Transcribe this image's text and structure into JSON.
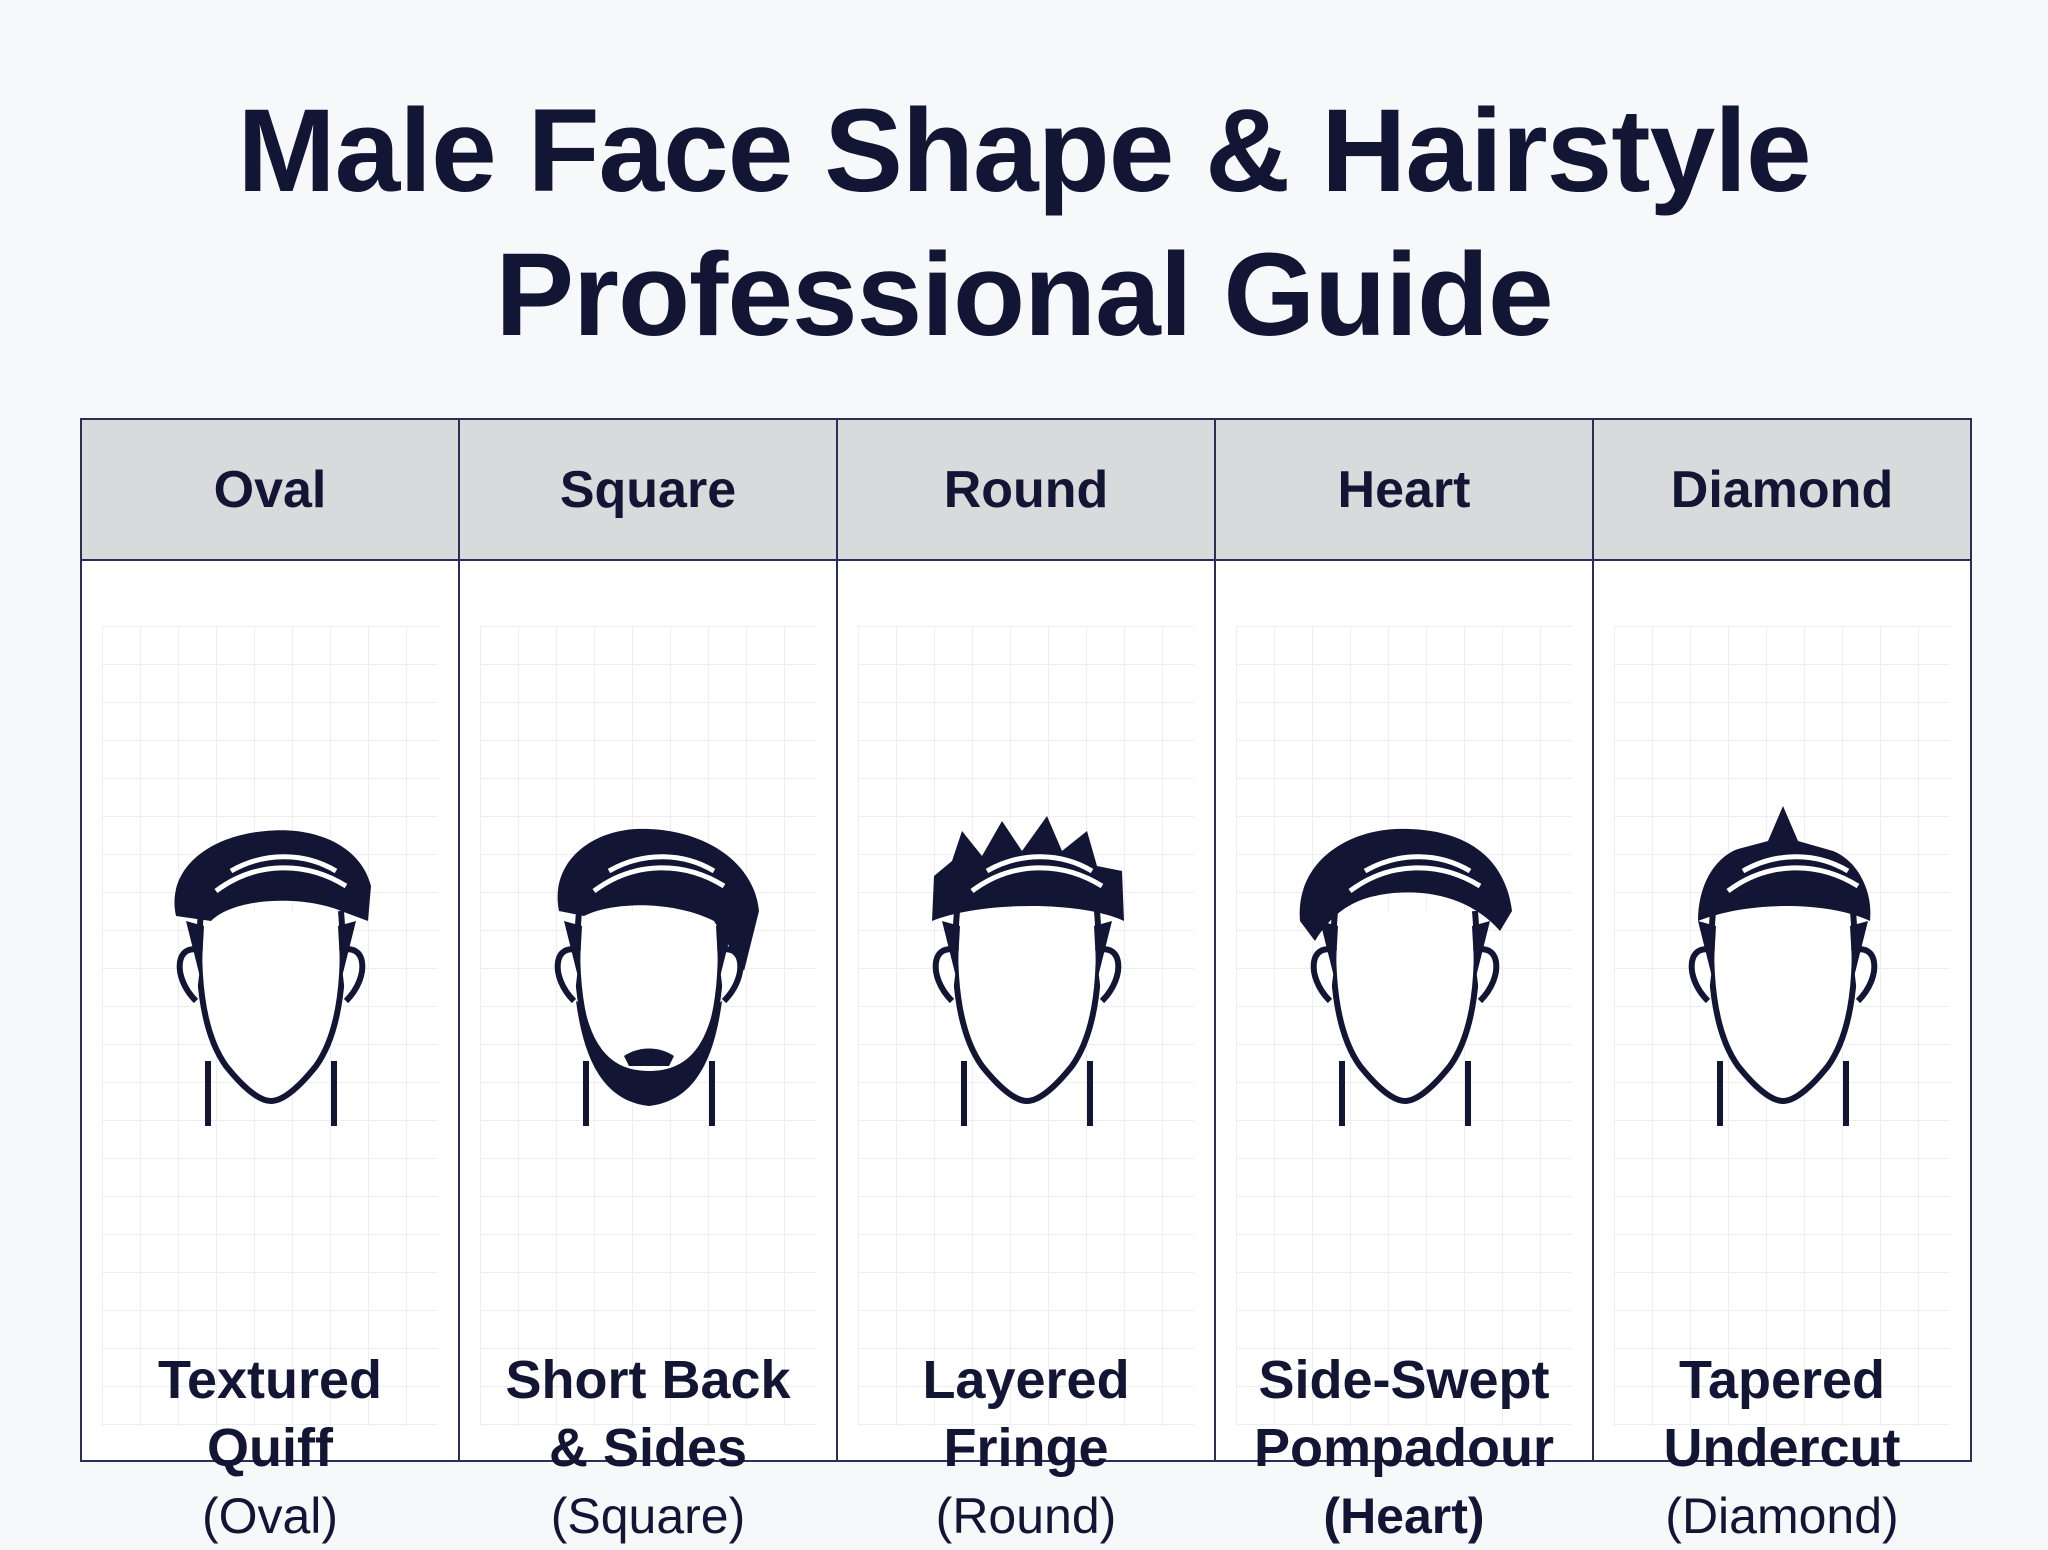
{
  "title": {
    "line1": "Male Face Shape & Hairstyle",
    "line2": "Professional Guide"
  },
  "columns": [
    {
      "header": "Oval",
      "style_line1": "Textured",
      "style_line2": "Quiff",
      "face_label": "(Oval)",
      "icon": "textured-quiff-head-icon"
    },
    {
      "header": "Square",
      "style_line1": "Short Back",
      "style_line2": "& Sides",
      "face_label": "(Square)",
      "icon": "short-back-sides-bearded-head-icon"
    },
    {
      "header": "Round",
      "style_line1": "Layered",
      "style_line2": "Fringe",
      "face_label": "(Round)",
      "icon": "layered-fringe-head-icon"
    },
    {
      "header": "Heart",
      "style_line1": "Side-Swept",
      "style_line2": "Pompadour",
      "face_label": "(Heart)",
      "icon": "side-swept-pompadour-head-icon"
    },
    {
      "header": "Diamond",
      "style_line1": "Tapered",
      "style_line2": "Undercut",
      "face_label": "(Diamond)",
      "icon": "tapered-undercut-head-icon"
    }
  ],
  "colors": {
    "ink": "#121634",
    "header_bg": "#d9dadc",
    "border": "#2a2f55"
  }
}
